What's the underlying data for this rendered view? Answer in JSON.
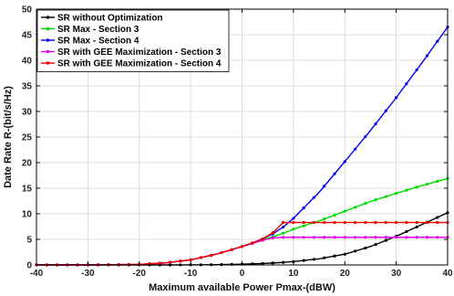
{
  "chart_data": {
    "type": "line",
    "title": "",
    "xlabel": "Maximum available Power Pmax-(dBW)",
    "ylabel": "Date Rate R-(bit/s/Hz)",
    "xlim": [
      -40,
      40
    ],
    "ylim": [
      0,
      50
    ],
    "xticks": [
      -40,
      -30,
      -20,
      -10,
      0,
      10,
      20,
      30,
      40
    ],
    "yticks": [
      0,
      5,
      10,
      15,
      20,
      25,
      30,
      35,
      40,
      45,
      50
    ],
    "grid": true,
    "legend_position": "top-left",
    "x": [
      -40,
      -30,
      -20,
      -15,
      -10,
      -5,
      0,
      2,
      4,
      6,
      8,
      10,
      15,
      20,
      25,
      30,
      35,
      40
    ],
    "series": [
      {
        "name": "SR without Optimization",
        "color": "#000000",
        "values": [
          0.0,
          0.0,
          0.0,
          0.0,
          0.02,
          0.05,
          0.15,
          0.2,
          0.28,
          0.38,
          0.5,
          0.65,
          1.2,
          2.1,
          3.6,
          5.6,
          7.9,
          10.2
        ]
      },
      {
        "name": "SR Max - Section 3",
        "color": "#00dd00",
        "values": [
          0.0,
          0.0,
          0.1,
          0.4,
          1.0,
          2.1,
          3.6,
          4.2,
          4.9,
          5.5,
          6.2,
          7.0,
          8.6,
          10.5,
          12.4,
          14.0,
          15.5,
          16.9
        ]
      },
      {
        "name": "SR Max - Section 4",
        "color": "#0000ee",
        "values": [
          0.0,
          0.0,
          0.1,
          0.4,
          1.0,
          2.1,
          3.6,
          4.3,
          5.1,
          6.1,
          7.4,
          9.1,
          14.2,
          20.2,
          26.3,
          32.7,
          39.5,
          46.5
        ]
      },
      {
        "name": "SR with GEE Maximization - Section 3",
        "color": "#ee00ee",
        "values": [
          0.0,
          0.0,
          0.1,
          0.4,
          1.0,
          2.1,
          3.6,
          4.2,
          4.8,
          5.3,
          5.4,
          5.4,
          5.4,
          5.4,
          5.4,
          5.4,
          5.4,
          5.4
        ]
      },
      {
        "name": "SR with GEE Maximization - Section 4",
        "color": "#ee0000",
        "values": [
          0.0,
          0.0,
          0.1,
          0.4,
          1.0,
          2.1,
          3.6,
          4.3,
          5.1,
          6.3,
          8.3,
          8.3,
          8.3,
          8.3,
          8.3,
          8.3,
          8.3,
          8.3
        ]
      }
    ]
  }
}
